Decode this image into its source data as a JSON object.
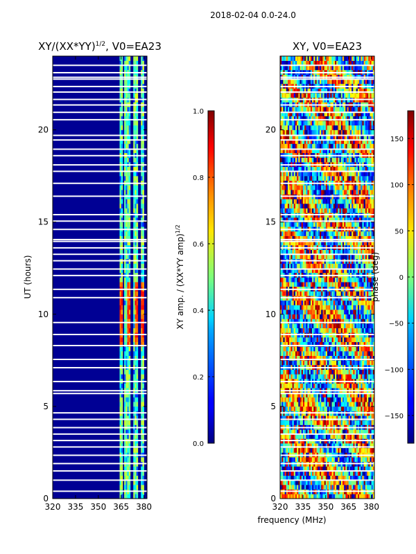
{
  "suptitle": "2018-02-04 0.0-24.0",
  "chart_data": [
    {
      "type": "heatmap",
      "title": "XY/(XX*YY)^1/2, V0=EA23",
      "title_main": "XY/(XX*YY)",
      "title_exp": "1/2",
      "title_suffix": ", V0=EA23",
      "xlabel": "",
      "ylabel": "UT (hours)",
      "xlim": [
        320,
        382
      ],
      "ylim": [
        0,
        24
      ],
      "xticks": [
        320,
        335,
        350,
        365,
        380
      ],
      "yticks": [
        0,
        5,
        10,
        15,
        20
      ],
      "colormap": "jet",
      "colorbar": {
        "label": "XY amp. / (XX*YY amp)^1/2",
        "label_main": "XY amp. / (XX*YY amp)",
        "label_exp": "1/2",
        "range": [
          0.0,
          1.0
        ],
        "ticks": [
          "0.0",
          "0.2",
          "0.4",
          "0.6",
          "0.8",
          "1.0"
        ]
      },
      "gaps_hours": [
        0.4,
        1.0,
        1.5,
        1.9,
        2.35,
        2.8,
        3.15,
        3.5,
        3.85,
        4.3,
        4.65,
        5.7,
        5.85,
        6.35,
        7.1,
        7.55,
        8.3,
        8.9,
        9.55,
        10.9,
        11.35,
        12.1,
        12.45,
        12.9,
        13.25,
        13.6,
        13.95,
        14.05,
        14.6,
        15.05,
        15.4,
        16.4,
        17.1,
        17.75,
        18.1,
        18.6,
        18.95,
        19.45,
        19.7,
        20.55,
        20.95,
        21.35,
        21.65,
        22.05,
        22.35,
        22.75,
        22.85,
        23.1,
        23.5
      ],
      "active_channels_MHz": [
        [
          364,
          366
        ],
        [
          367,
          371
        ],
        [
          373,
          376
        ],
        [
          378,
          380
        ]
      ],
      "high_amplitude_region": {
        "hours": [
          8.2,
          11.8
        ],
        "channels_MHz": [
          [
            364,
            366
          ],
          [
            369,
            372
          ],
          [
            374,
            376
          ],
          [
            378,
            380
          ]
        ],
        "amplitude": 0.8
      }
    },
    {
      "type": "heatmap",
      "title": "XY, V0=EA23",
      "xlabel": "frequency (MHz)",
      "ylabel": "",
      "xlim": [
        320,
        382
      ],
      "ylim": [
        0,
        24
      ],
      "xticks": [
        320,
        335,
        350,
        365,
        380
      ],
      "yticks": [
        0,
        5,
        10,
        15,
        20
      ],
      "colormap": "jet",
      "colorbar": {
        "label": "phase (deg)",
        "range": [
          -180,
          180
        ],
        "ticks": [
          "−150",
          "−100",
          "−50",
          "0",
          "50",
          "100",
          "150"
        ]
      },
      "gaps_hours": [
        0.4,
        1.0,
        1.5,
        1.9,
        2.35,
        2.8,
        3.15,
        3.5,
        3.85,
        4.3,
        4.65,
        5.7,
        5.85,
        6.35,
        7.1,
        7.55,
        8.3,
        8.9,
        9.55,
        10.9,
        11.35,
        12.1,
        12.45,
        12.9,
        13.25,
        13.6,
        13.95,
        14.05,
        14.6,
        15.05,
        15.4,
        16.4,
        17.1,
        17.75,
        18.1,
        18.6,
        18.95,
        19.45,
        19.7,
        20.55,
        20.95,
        21.35,
        21.65,
        22.05,
        22.35,
        22.75,
        22.85,
        23.1,
        23.5
      ]
    }
  ]
}
